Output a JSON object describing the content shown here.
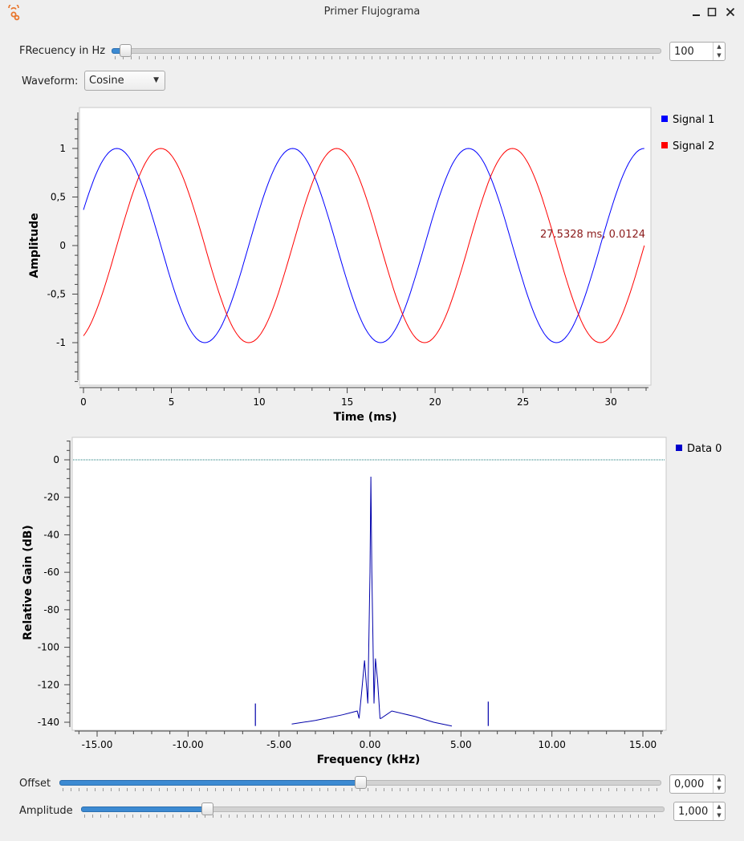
{
  "window": {
    "title": "Primer Flujograma"
  },
  "controls": {
    "frequency": {
      "label": "FRecuency in Hz",
      "value": "100",
      "fraction": 0.015
    },
    "waveform": {
      "label": "Waveform:",
      "selected": "Cosine"
    },
    "offset": {
      "label": "Offset",
      "value": "0,000",
      "fraction": 0.5
    },
    "amplitude": {
      "label": "Amplitude",
      "value": "1,000",
      "fraction": 0.21
    }
  },
  "time_plot": {
    "xlabel": "Time (ms)",
    "ylabel": "Amplitude",
    "xticks": [
      "0",
      "5",
      "10",
      "15",
      "20",
      "25",
      "30"
    ],
    "yticks": [
      "1",
      "0,5",
      "0",
      "-0,5",
      "-1"
    ],
    "annotation": "27.5328 ms, 0.0124",
    "legend": [
      "Signal 1",
      "Signal 2"
    ]
  },
  "freq_plot": {
    "xlabel": "Frequency (kHz)",
    "ylabel": "Relative Gain (dB)",
    "xticks": [
      "-15.00",
      "-10.00",
      "-5.00",
      "0.00",
      "5.00",
      "10.00",
      "15.00"
    ],
    "yticks": [
      "0",
      "-20",
      "-40",
      "-60",
      "-80",
      "-100",
      "-120",
      "-140"
    ],
    "legend": [
      "Data 0"
    ]
  },
  "chart_data": [
    {
      "type": "line",
      "xlabel": "Time (ms)",
      "ylabel": "Amplitude",
      "xlim": [
        0,
        32
      ],
      "ylim": [
        -1.4,
        1.4
      ],
      "series": [
        {
          "name": "Signal 1",
          "color": "#0000ff",
          "function": "cos",
          "frequency_hz": 100,
          "amplitude": 1,
          "peaks_at_ms": [
            1.9,
            11.9,
            21.9
          ]
        },
        {
          "name": "Signal 2",
          "color": "#ff0000",
          "function": "cos",
          "frequency_hz": 100,
          "amplitude": 1,
          "peaks_at_ms": [
            4.4,
            14.4,
            24.4
          ]
        }
      ],
      "legend": "right",
      "annotation": "27.5328 ms, 0.0124"
    },
    {
      "type": "line",
      "xlabel": "Frequency (kHz)",
      "ylabel": "Relative Gain (dB)",
      "xlim": [
        -16,
        16
      ],
      "ylim": [
        -140,
        10
      ],
      "reference_line_db": 0,
      "series": [
        {
          "name": "Data 0",
          "color": "#0000aa",
          "points": [
            [
              -4.3,
              -141
            ],
            [
              -3.0,
              -139
            ],
            [
              -1.5,
              -136
            ],
            [
              -0.7,
              -134
            ],
            [
              -0.6,
              -138
            ],
            [
              -0.45,
              -123
            ],
            [
              -0.3,
              -107
            ],
            [
              -0.12,
              -130
            ],
            [
              0.0,
              -60
            ],
            [
              0.05,
              -9
            ],
            [
              0.1,
              -60
            ],
            [
              0.22,
              -130
            ],
            [
              0.3,
              -106
            ],
            [
              0.42,
              -118
            ],
            [
              0.55,
              -138
            ],
            [
              0.6,
              -138
            ],
            [
              1.2,
              -134
            ],
            [
              2.5,
              -137
            ],
            [
              3.5,
              -140
            ],
            [
              4.5,
              -142
            ]
          ]
        }
      ],
      "spurs": [
        {
          "x": -6.3,
          "y": -130
        },
        {
          "x": 6.5,
          "y": -129
        }
      ],
      "legend": "right"
    }
  ]
}
